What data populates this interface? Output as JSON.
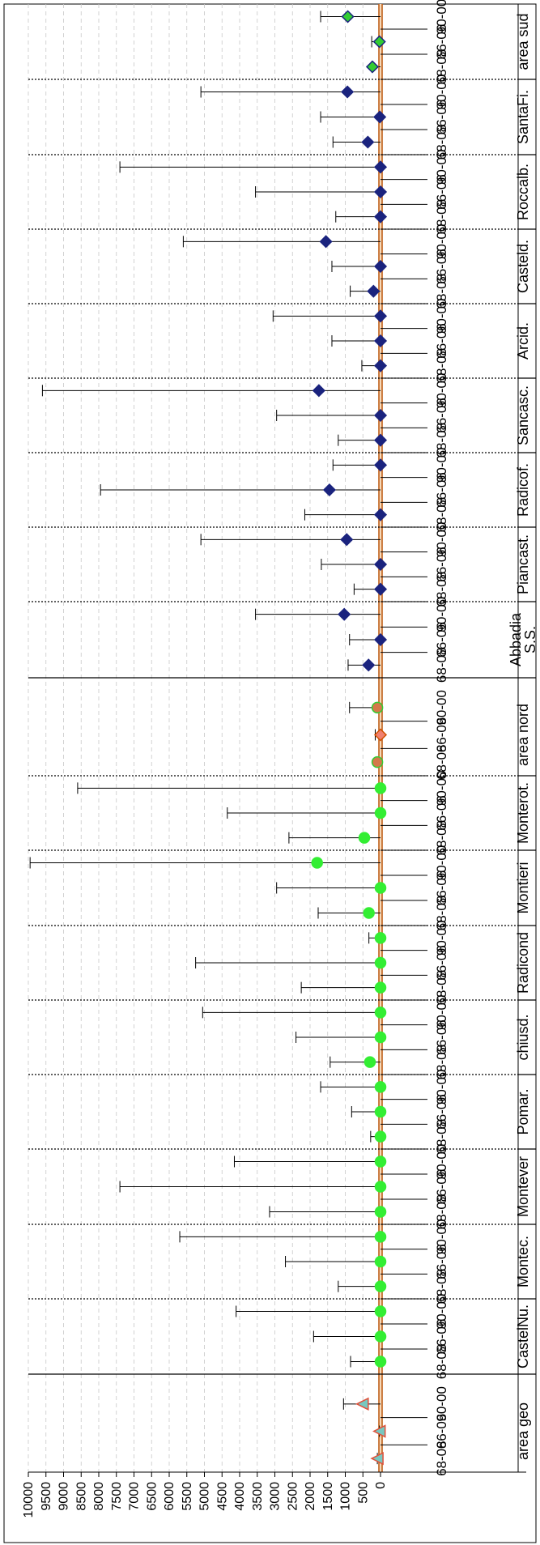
{
  "chart_data": {
    "type": "scatter",
    "orientation": "horizontal",
    "value_axis": {
      "min": 0,
      "max": 10000,
      "tick_step": 500,
      "tick_labels": [
        "0",
        "500",
        "1000",
        "1500",
        "2000",
        "2500",
        "3000",
        "3500",
        "4000",
        "4500",
        "5000",
        "5500",
        "6000",
        "6500",
        "7000",
        "7500",
        "8000",
        "8500",
        "9000",
        "9500",
        "10000"
      ],
      "grid": true
    },
    "sub_categories": [
      "90-00",
      "66-06",
      "68-08"
    ],
    "groups": [
      {
        "label": "area sud",
        "marker": "diamond",
        "fill": "#33cc33",
        "stroke": "#1a237e",
        "zone": "sud",
        "points": [
          {
            "category": "90-00",
            "value": 930,
            "err": 1700
          },
          {
            "category": "66-06",
            "value": 30,
            "err": 250
          },
          {
            "category": "68-08",
            "value": 230,
            "err": 250
          }
        ]
      },
      {
        "label": "SantaFi.",
        "marker": "diamond",
        "fill": "#1a237e",
        "stroke": "#1a237e",
        "zone": "sud",
        "points": [
          {
            "category": "90-00",
            "value": 940,
            "err": 5100
          },
          {
            "category": "66-06",
            "value": 20,
            "err": 1700
          },
          {
            "category": "68-08",
            "value": 360,
            "err": 1350
          }
        ]
      },
      {
        "label": "Roccalb.",
        "marker": "diamond",
        "fill": "#1a237e",
        "stroke": "#1a237e",
        "zone": "sud",
        "points": [
          {
            "category": "90-00",
            "value": 0,
            "err": 7400
          },
          {
            "category": "66-06",
            "value": 0,
            "err": 3550
          },
          {
            "category": "68-08",
            "value": 0,
            "err": 1270
          }
        ]
      },
      {
        "label": "Casteld.",
        "marker": "diamond",
        "fill": "#1a237e",
        "stroke": "#1a237e",
        "zone": "sud",
        "points": [
          {
            "category": "90-00",
            "value": 1550,
            "err": 5600
          },
          {
            "category": "66-06",
            "value": 0,
            "err": 1380
          },
          {
            "category": "68-08",
            "value": 200,
            "err": 860
          }
        ]
      },
      {
        "label": "Arcid.",
        "marker": "diamond",
        "fill": "#1a237e",
        "stroke": "#1a237e",
        "zone": "sud",
        "points": [
          {
            "category": "90-00",
            "value": 0,
            "err": 3050
          },
          {
            "category": "66-06",
            "value": 0,
            "err": 1380
          },
          {
            "category": "68-08",
            "value": 0,
            "err": 530
          }
        ]
      },
      {
        "label": "Sancasc.",
        "marker": "diamond",
        "fill": "#1a237e",
        "stroke": "#1a237e",
        "zone": "sud",
        "points": [
          {
            "category": "90-00",
            "value": 1750,
            "err": 9600
          },
          {
            "category": "66-06",
            "value": 0,
            "err": 2950
          },
          {
            "category": "68-08",
            "value": 0,
            "err": 1200
          }
        ]
      },
      {
        "label": "Radicof.",
        "marker": "diamond",
        "fill": "#1a237e",
        "stroke": "#1a237e",
        "zone": "sud",
        "points": [
          {
            "category": "90-00",
            "value": 0,
            "err": 1350
          },
          {
            "category": "66-06",
            "value": 1450,
            "err": 7950
          },
          {
            "category": "68-08",
            "value": 0,
            "err": 2150
          }
        ]
      },
      {
        "label": "Piancast.",
        "marker": "diamond",
        "fill": "#1a237e",
        "stroke": "#1a237e",
        "zone": "sud",
        "points": [
          {
            "category": "90-00",
            "value": 960,
            "err": 5100
          },
          {
            "category": "66-06",
            "value": 0,
            "err": 1680
          },
          {
            "category": "68-08",
            "value": 0,
            "err": 750
          }
        ]
      },
      {
        "label": "Abbadia S.S.",
        "marker": "diamond",
        "fill": "#1a237e",
        "stroke": "#1a237e",
        "zone": "sud",
        "points": [
          {
            "category": "90-00",
            "value": 1030,
            "err": 3550
          },
          {
            "category": "66-06",
            "value": 0,
            "err": 880
          },
          {
            "category": "68-08",
            "value": 340,
            "err": 920
          }
        ]
      },
      {
        "label": "area nord",
        "marker": "circle",
        "fill": "#d4794a",
        "stroke": "#33cc33",
        "zone": "nord",
        "points": [
          {
            "category": "90-00",
            "value": 90,
            "err": 880
          },
          {
            "category": "66-06",
            "value": 0,
            "err": 150,
            "marker": "diamond",
            "fill": "#f08070",
            "stroke": "#d05000"
          },
          {
            "category": "68-08",
            "value": 90,
            "err": 90
          }
        ]
      },
      {
        "label": "Monterot.",
        "marker": "circle",
        "fill": "#33ee33",
        "stroke": "#33ee33",
        "zone": "nord",
        "points": [
          {
            "category": "90-00",
            "value": 0,
            "err": 8600
          },
          {
            "category": "66-06",
            "value": 0,
            "err": 4350
          },
          {
            "category": "68-08",
            "value": 460,
            "err": 2600
          }
        ]
      },
      {
        "label": "Montieri",
        "marker": "circle",
        "fill": "#33ee33",
        "stroke": "#33ee33",
        "zone": "nord",
        "points": [
          {
            "category": "90-00",
            "value": 1800,
            "err": 9950
          },
          {
            "category": "66-06",
            "value": 0,
            "err": 2950
          },
          {
            "category": "68-08",
            "value": 330,
            "err": 1770
          }
        ]
      },
      {
        "label": "Radicond",
        "marker": "circle",
        "fill": "#33ee33",
        "stroke": "#33ee33",
        "zone": "nord",
        "points": [
          {
            "category": "90-00",
            "value": 0,
            "err": 330
          },
          {
            "category": "66-06",
            "value": 0,
            "err": 5250
          },
          {
            "category": "68-08",
            "value": 0,
            "err": 2250
          }
        ]
      },
      {
        "label": "chiusd.",
        "marker": "circle",
        "fill": "#33ee33",
        "stroke": "#33ee33",
        "zone": "nord",
        "points": [
          {
            "category": "90-00",
            "value": 0,
            "err": 5050
          },
          {
            "category": "66-06",
            "value": 0,
            "err": 2400
          },
          {
            "category": "68-08",
            "value": 300,
            "err": 1430
          }
        ]
      },
      {
        "label": "Pomar.",
        "marker": "circle",
        "fill": "#33ee33",
        "stroke": "#33ee33",
        "zone": "nord",
        "points": [
          {
            "category": "90-00",
            "value": 0,
            "err": 1700
          },
          {
            "category": "66-06",
            "value": 0,
            "err": 820
          },
          {
            "category": "68-08",
            "value": 0,
            "err": 280
          }
        ]
      },
      {
        "label": "Montever",
        "marker": "circle",
        "fill": "#33ee33",
        "stroke": "#33ee33",
        "zone": "nord",
        "points": [
          {
            "category": "90-00",
            "value": 0,
            "err": 4150
          },
          {
            "category": "66-06",
            "value": 0,
            "err": 7400
          },
          {
            "category": "68-08",
            "value": 0,
            "err": 3150
          }
        ]
      },
      {
        "label": "Montec.",
        "marker": "circle",
        "fill": "#33ee33",
        "stroke": "#33ee33",
        "zone": "nord",
        "points": [
          {
            "category": "90-00",
            "value": 0,
            "err": 5700
          },
          {
            "category": "66-06",
            "value": 0,
            "err": 2700
          },
          {
            "category": "68-08",
            "value": 0,
            "err": 1200
          }
        ]
      },
      {
        "label": "CastelNu.",
        "marker": "circle",
        "fill": "#33ee33",
        "stroke": "#33ee33",
        "zone": "nord",
        "points": [
          {
            "category": "90-00",
            "value": 0,
            "err": 4100
          },
          {
            "category": "66-06",
            "value": 0,
            "err": 1900
          },
          {
            "category": "68-08",
            "value": 0,
            "err": 850
          }
        ]
      },
      {
        "label": "area geo",
        "marker": "triangle",
        "fill": "#78c8c0",
        "stroke": "#e0503a",
        "zone": "geo",
        "points": [
          {
            "category": "90-00",
            "value": 510,
            "err": 1050
          },
          {
            "category": "66-06",
            "value": 30,
            "err": 30
          },
          {
            "category": "68-08",
            "value": 90,
            "err": 90
          }
        ]
      }
    ],
    "colors": {
      "zero_line": "#c0601a",
      "zero_band": "#f6d8b8",
      "gridline": "#c8c8c8",
      "errorbar": "#000000"
    }
  }
}
